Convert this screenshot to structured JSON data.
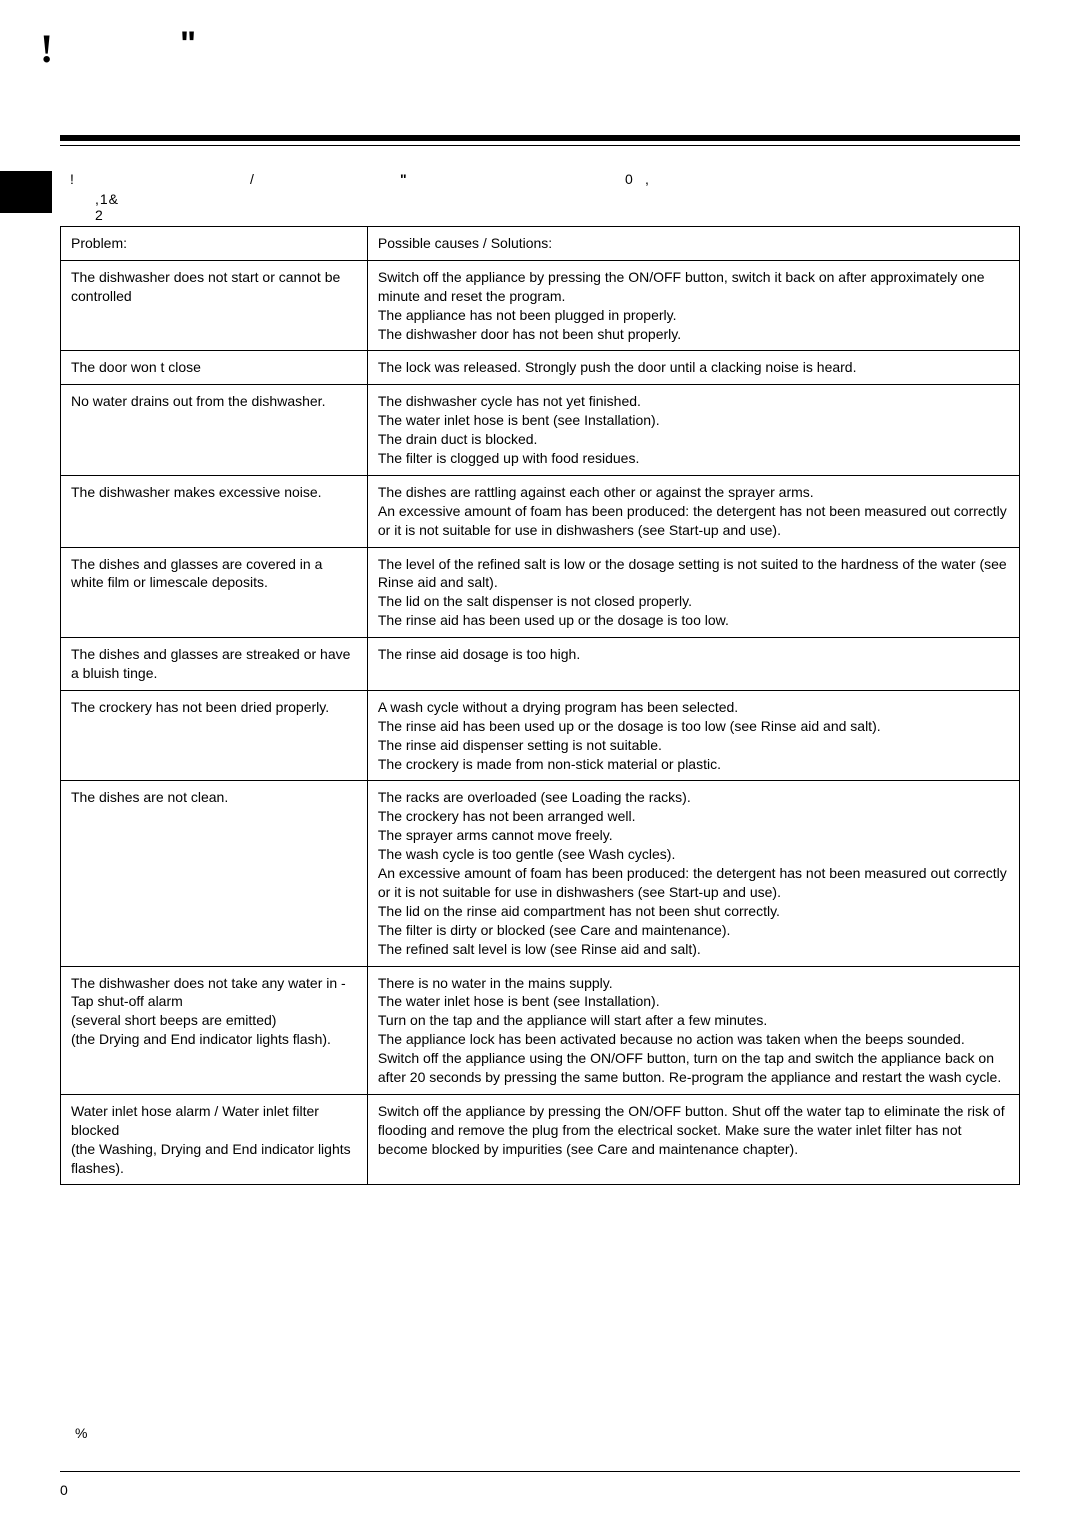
{
  "marks": {
    "top_left": "!",
    "top_quote": "\"",
    "intro_m1": "!",
    "intro_m2": "/",
    "intro_m3": "\"",
    "intro_m4": "0",
    "intro_m5": ",",
    "intro_m6": ",1&  2",
    "footer_percent": "%",
    "footer_zero": "0"
  },
  "table": {
    "header_problem": "Problem:",
    "header_solution": "Possible causes / Solutions:",
    "rows": [
      {
        "problem": "The dishwasher does not start or cannot be controlled",
        "solution": "Switch off the appliance by pressing the ON/OFF button, switch it back on after approximately one minute and reset the program.\nThe appliance has not been plugged in properly.\nThe dishwasher door has not been shut properly."
      },
      {
        "problem": "The door won   t close",
        "solution": "The lock was released. Strongly push the door until a  clacking  noise is heard."
      },
      {
        "problem": "No water drains out from the dishwasher.",
        "solution": "The dishwasher cycle has not yet finished.\nThe water inlet hose is bent (see Installation).\nThe drain duct is blocked.\nThe filter is clogged up with food residues."
      },
      {
        "problem": "The dishwasher makes excessive noise.",
        "solution": "The dishes are rattling against each other or against the sprayer arms.\nAn excessive amount of foam has been produced: the detergent has not been measured out correctly or it is not suitable for use in dishwashers (see Start-up and use)."
      },
      {
        "problem": "The dishes and glasses are covered in a white film or limescale deposits.",
        "solution": "The level of the refined salt is low or the dosage setting is not suited to the hardness of the water (see Rinse aid and salt).\nThe lid on the salt dispenser is not closed properly.\nThe rinse aid has been used up or the dosage is too low."
      },
      {
        "problem": "The dishes and glasses are streaked or have a bluish tinge.",
        "solution": "The rinse aid dosage is too high."
      },
      {
        "problem": "The crockery has not been dried properly.",
        "solution": "A wash cycle without a drying program has been selected.\nThe rinse aid has been used up or the dosage is too low (see Rinse aid and salt).\nThe rinse aid dispenser setting is not suitable.\nThe crockery is made from non-stick material or plastic."
      },
      {
        "problem": "The dishes are not clean.",
        "solution": "The racks are overloaded (see Loading the racks).\nThe crockery has not been arranged well.\nThe sprayer arms cannot move freely.\nThe wash cycle is too gentle (see Wash cycles).\nAn excessive amount of foam has been produced: the detergent has not been measured out correctly or it is not suitable for use in dishwashers (see Start-up and use).\nThe lid on the rinse aid compartment has not been shut correctly.\nThe filter is dirty or blocked (see Care and maintenance).\nThe refined salt level is low (see Rinse aid and salt)."
      },
      {
        "problem": "The dishwasher does not take any water in - Tap shut-off alarm\n(several short beeps are emitted)\n(the Drying and End indicator lights flash).",
        "solution": "There is no water in the mains supply.\nThe water inlet hose is bent (see Installation).\nTurn on the tap and the appliance will start after a few minutes.\nThe appliance lock has been activated because no action was taken when the beeps sounded.\nSwitch off the appliance using the ON/OFF button, turn on the tap and switch the appliance back on after 20 seconds by pressing the same button. Re-program the appliance and restart the wash cycle."
      },
      {
        "problem": "Water inlet hose alarm / Water inlet filter blocked\n(the  Washing, Drying and End indicator lights flashes).",
        "solution": "Switch off the appliance by pressing the ON/OFF button. Shut off the water tap to eliminate the risk of flooding and remove the plug from the electrical socket. Make sure the water inlet filter has not become blocked by impurities (see  Care and maintenance  chapter)."
      }
    ]
  }
}
